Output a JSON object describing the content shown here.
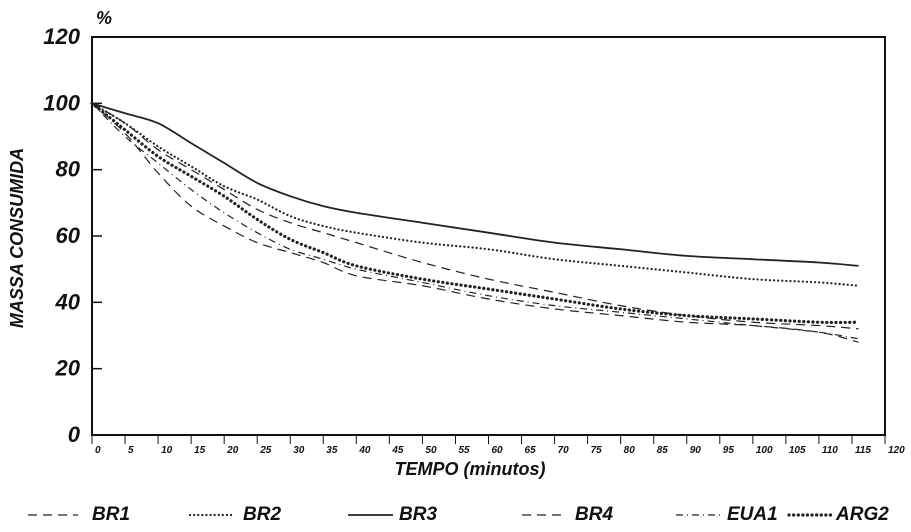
{
  "chart_data": {
    "type": "line",
    "title": "",
    "xlabel": "TEMPO (minutos)",
    "ylabel": "MASSA CONSUMIDA",
    "yunit": "%",
    "xlim": [
      0,
      120
    ],
    "ylim": [
      0,
      120
    ],
    "xticks": [
      "0",
      "5",
      "10",
      "15",
      "20",
      "25",
      "30",
      "35",
      "40",
      "45",
      "50",
      "55",
      "60",
      "65",
      "70",
      "75",
      "80",
      "85",
      "90",
      "95",
      "100",
      "105",
      "110",
      "115",
      "120"
    ],
    "yticks": [
      "0",
      "20",
      "40",
      "60",
      "80",
      "100",
      "120"
    ],
    "grid": false,
    "legend_position": "bottom",
    "x": [
      0,
      5,
      10,
      15,
      20,
      25,
      30,
      35,
      40,
      50,
      60,
      70,
      80,
      90,
      100,
      110,
      116
    ],
    "series": [
      {
        "name": "BR1",
        "style": "dashed",
        "values": [
          100,
          91,
          79,
          69,
          63,
          58,
          55,
          52,
          48,
          45,
          41,
          38,
          36,
          34,
          33,
          31,
          28
        ]
      },
      {
        "name": "BR2",
        "style": "dotted",
        "values": [
          100,
          94,
          87,
          81,
          75,
          71,
          66,
          63,
          61,
          58,
          56,
          53,
          51,
          49,
          47,
          46,
          45
        ]
      },
      {
        "name": "BR3",
        "style": "solid",
        "values": [
          100,
          97,
          94,
          88,
          82,
          76,
          72,
          69,
          67,
          64,
          61,
          58,
          56,
          54,
          53,
          52,
          51
        ]
      },
      {
        "name": "BR4",
        "style": "dashed",
        "values": [
          100,
          94,
          86,
          80,
          74,
          68,
          64,
          61,
          58,
          52,
          47,
          43,
          39,
          36,
          34,
          33,
          32
        ]
      },
      {
        "name": "EUA1",
        "style": "dash-dot",
        "values": [
          100,
          90,
          82,
          74,
          67,
          61,
          56,
          53,
          50,
          46,
          42,
          39,
          37,
          35,
          33,
          31,
          29
        ]
      },
      {
        "name": "ARG2",
        "style": "dotted-heavy",
        "values": [
          100,
          92,
          84,
          78,
          72,
          65,
          59,
          55,
          51,
          47,
          44,
          41,
          38,
          36,
          35,
          34,
          34
        ]
      }
    ]
  }
}
